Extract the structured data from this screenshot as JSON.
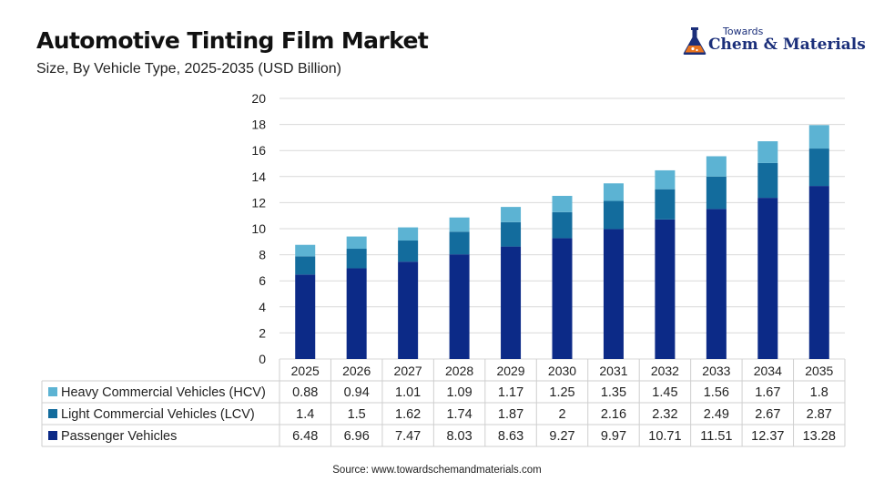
{
  "header": {
    "title": "Automotive Tinting Film Market",
    "subtitle": "Size, By Vehicle Type, 2025-2035 (USD Billion)"
  },
  "logo": {
    "top_text": "Towards",
    "main_text": "Chem & Materials",
    "icon": "flask-icon"
  },
  "source": "Source: www.towardschemandmaterials.com",
  "chart_data": {
    "type": "bar",
    "stacked": true,
    "categories": [
      "2025",
      "2026",
      "2027",
      "2028",
      "2029",
      "2030",
      "2031",
      "2032",
      "2033",
      "2034",
      "2035"
    ],
    "series": [
      {
        "name": "Passenger Vehicles",
        "color": "#0c2a87",
        "values": [
          6.48,
          6.96,
          7.47,
          8.03,
          8.63,
          9.27,
          9.97,
          10.71,
          11.51,
          12.37,
          13.28
        ]
      },
      {
        "name": "Light Commercial Vehicles (LCV)",
        "color": "#136c9d",
        "values": [
          1.4,
          1.5,
          1.62,
          1.74,
          1.87,
          2,
          2.16,
          2.32,
          2.49,
          2.67,
          2.87
        ]
      },
      {
        "name": "Heavy Commercial Vehicles (HCV)",
        "color": "#5cb3d3",
        "values": [
          0.88,
          0.94,
          1.01,
          1.09,
          1.17,
          1.25,
          1.35,
          1.45,
          1.56,
          1.67,
          1.8
        ]
      }
    ],
    "table_order": [
      2,
      1,
      0
    ],
    "y_ticks": [
      "0",
      "2",
      "4",
      "6",
      "8",
      "10",
      "12",
      "14",
      "16",
      "18",
      "20"
    ],
    "ylim": [
      0,
      20
    ],
    "grid": true,
    "legend": "data-table"
  }
}
